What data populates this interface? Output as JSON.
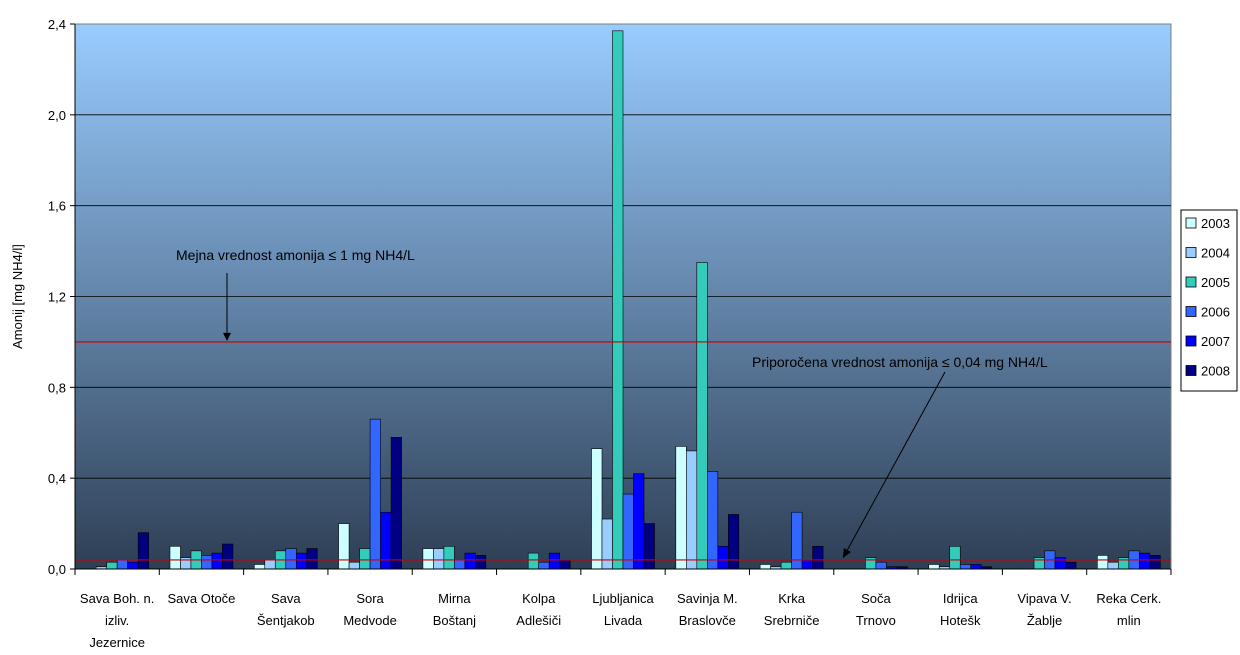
{
  "chart_data": {
    "type": "bar",
    "ylabel": "Amonij [mg NH4/l]",
    "ylim": [
      0,
      2.4
    ],
    "yticks": [
      "0,0",
      "0,4",
      "0,8",
      "1,2",
      "1,6",
      "2,0",
      "2,4"
    ],
    "ytick_values": [
      0,
      0.4,
      0.8,
      1.2,
      1.6,
      2.0,
      2.4
    ],
    "grid": true,
    "legend_position": "right",
    "categories": [
      [
        "Sava Boh. n.",
        "izliv.",
        "Jezernice"
      ],
      [
        "Sava Otoče"
      ],
      [
        "Sava",
        "Šentjakob"
      ],
      [
        "Sora",
        "Medvode"
      ],
      [
        "Mirna",
        "Boštanj"
      ],
      [
        "Kolpa",
        "Adlešiči"
      ],
      [
        "Ljubljanica",
        "Livada"
      ],
      [
        "Savinja M.",
        "Braslovče"
      ],
      [
        "Krka",
        "Srebrniče"
      ],
      [
        "Soča",
        "Trnovo"
      ],
      [
        "Idrijca",
        "Hotešk"
      ],
      [
        "Vipava V.",
        "Žablje"
      ],
      [
        "Reka Cerk.",
        "mlin"
      ]
    ],
    "series": [
      {
        "name": "2003",
        "color": "#ccffff",
        "values": [
          0.0,
          0.1,
          0.02,
          0.2,
          0.09,
          0.0,
          0.53,
          0.54,
          0.02,
          0.0,
          0.02,
          0.0,
          0.06
        ]
      },
      {
        "name": "2004",
        "color": "#99ccff",
        "values": [
          0.01,
          0.05,
          0.04,
          0.03,
          0.09,
          0.0,
          0.22,
          0.52,
          0.01,
          0.0,
          0.01,
          0.0,
          0.03
        ]
      },
      {
        "name": "2005",
        "color": "#33ccbb",
        "values": [
          0.03,
          0.08,
          0.08,
          0.09,
          0.1,
          0.07,
          2.37,
          1.35,
          0.03,
          0.05,
          0.1,
          0.05,
          0.05
        ]
      },
      {
        "name": "2006",
        "color": "#3366ff",
        "values": [
          0.04,
          0.06,
          0.09,
          0.66,
          0.04,
          0.03,
          0.33,
          0.43,
          0.25,
          0.03,
          0.02,
          0.08,
          0.08
        ]
      },
      {
        "name": "2007",
        "color": "#0000ff",
        "values": [
          0.03,
          0.07,
          0.07,
          0.25,
          0.07,
          0.07,
          0.42,
          0.1,
          0.04,
          0.01,
          0.02,
          0.05,
          0.07
        ]
      },
      {
        "name": "2008",
        "color": "#000080",
        "values": [
          0.16,
          0.11,
          0.09,
          0.58,
          0.06,
          0.04,
          0.2,
          0.24,
          0.1,
          0.01,
          0.01,
          0.03,
          0.06
        ]
      }
    ],
    "reference_lines": [
      {
        "value": 1.0,
        "label": "Mejna vrednost amonija ≤ 1 mg NH4/L",
        "color": "#cc0000"
      },
      {
        "value": 0.04,
        "label": "Priporočena vrednost amonija ≤ 0,04 mg NH4/L",
        "color": "#cc0000"
      }
    ],
    "background_gradient": {
      "top": "#99ccff",
      "bottom": "#2e3f55"
    }
  }
}
